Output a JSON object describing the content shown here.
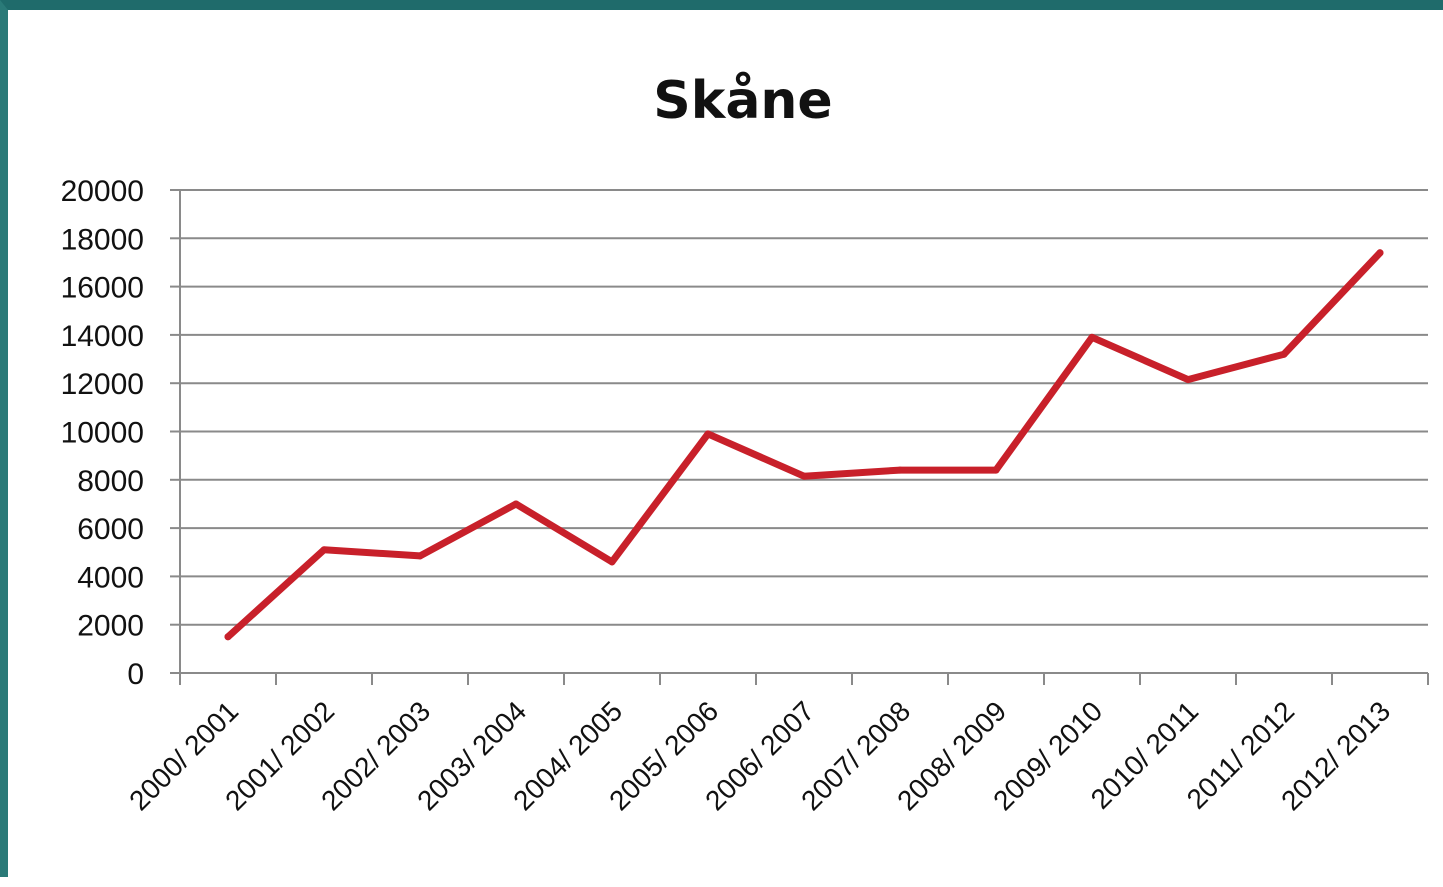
{
  "chart_data": {
    "type": "line",
    "title": "Skåne",
    "xlabel": "",
    "ylabel": "",
    "categories": [
      "2000/ 2001",
      "2001/ 2002",
      "2002/ 2003",
      "2003/ 2004",
      "2004/ 2005",
      "2005/ 2006",
      "2006/ 2007",
      "2007/ 2008",
      "2008/ 2009",
      "2009/ 2010",
      "2010/ 2011",
      "2011/ 2012",
      "2012/ 2013"
    ],
    "series": [
      {
        "color": "#c8202a",
        "values": [
          1500,
          5100,
          4850,
          7000,
          4600,
          9900,
          8150,
          8400,
          8400,
          13900,
          12150,
          13200,
          17400
        ]
      }
    ],
    "ylim": [
      0,
      20000
    ],
    "yticks": [
      "0",
      "2000",
      "4000",
      "6000",
      "8000",
      "10000",
      "12000",
      "14000",
      "16000",
      "18000",
      "20000"
    ],
    "grid": true,
    "legend": "none"
  }
}
